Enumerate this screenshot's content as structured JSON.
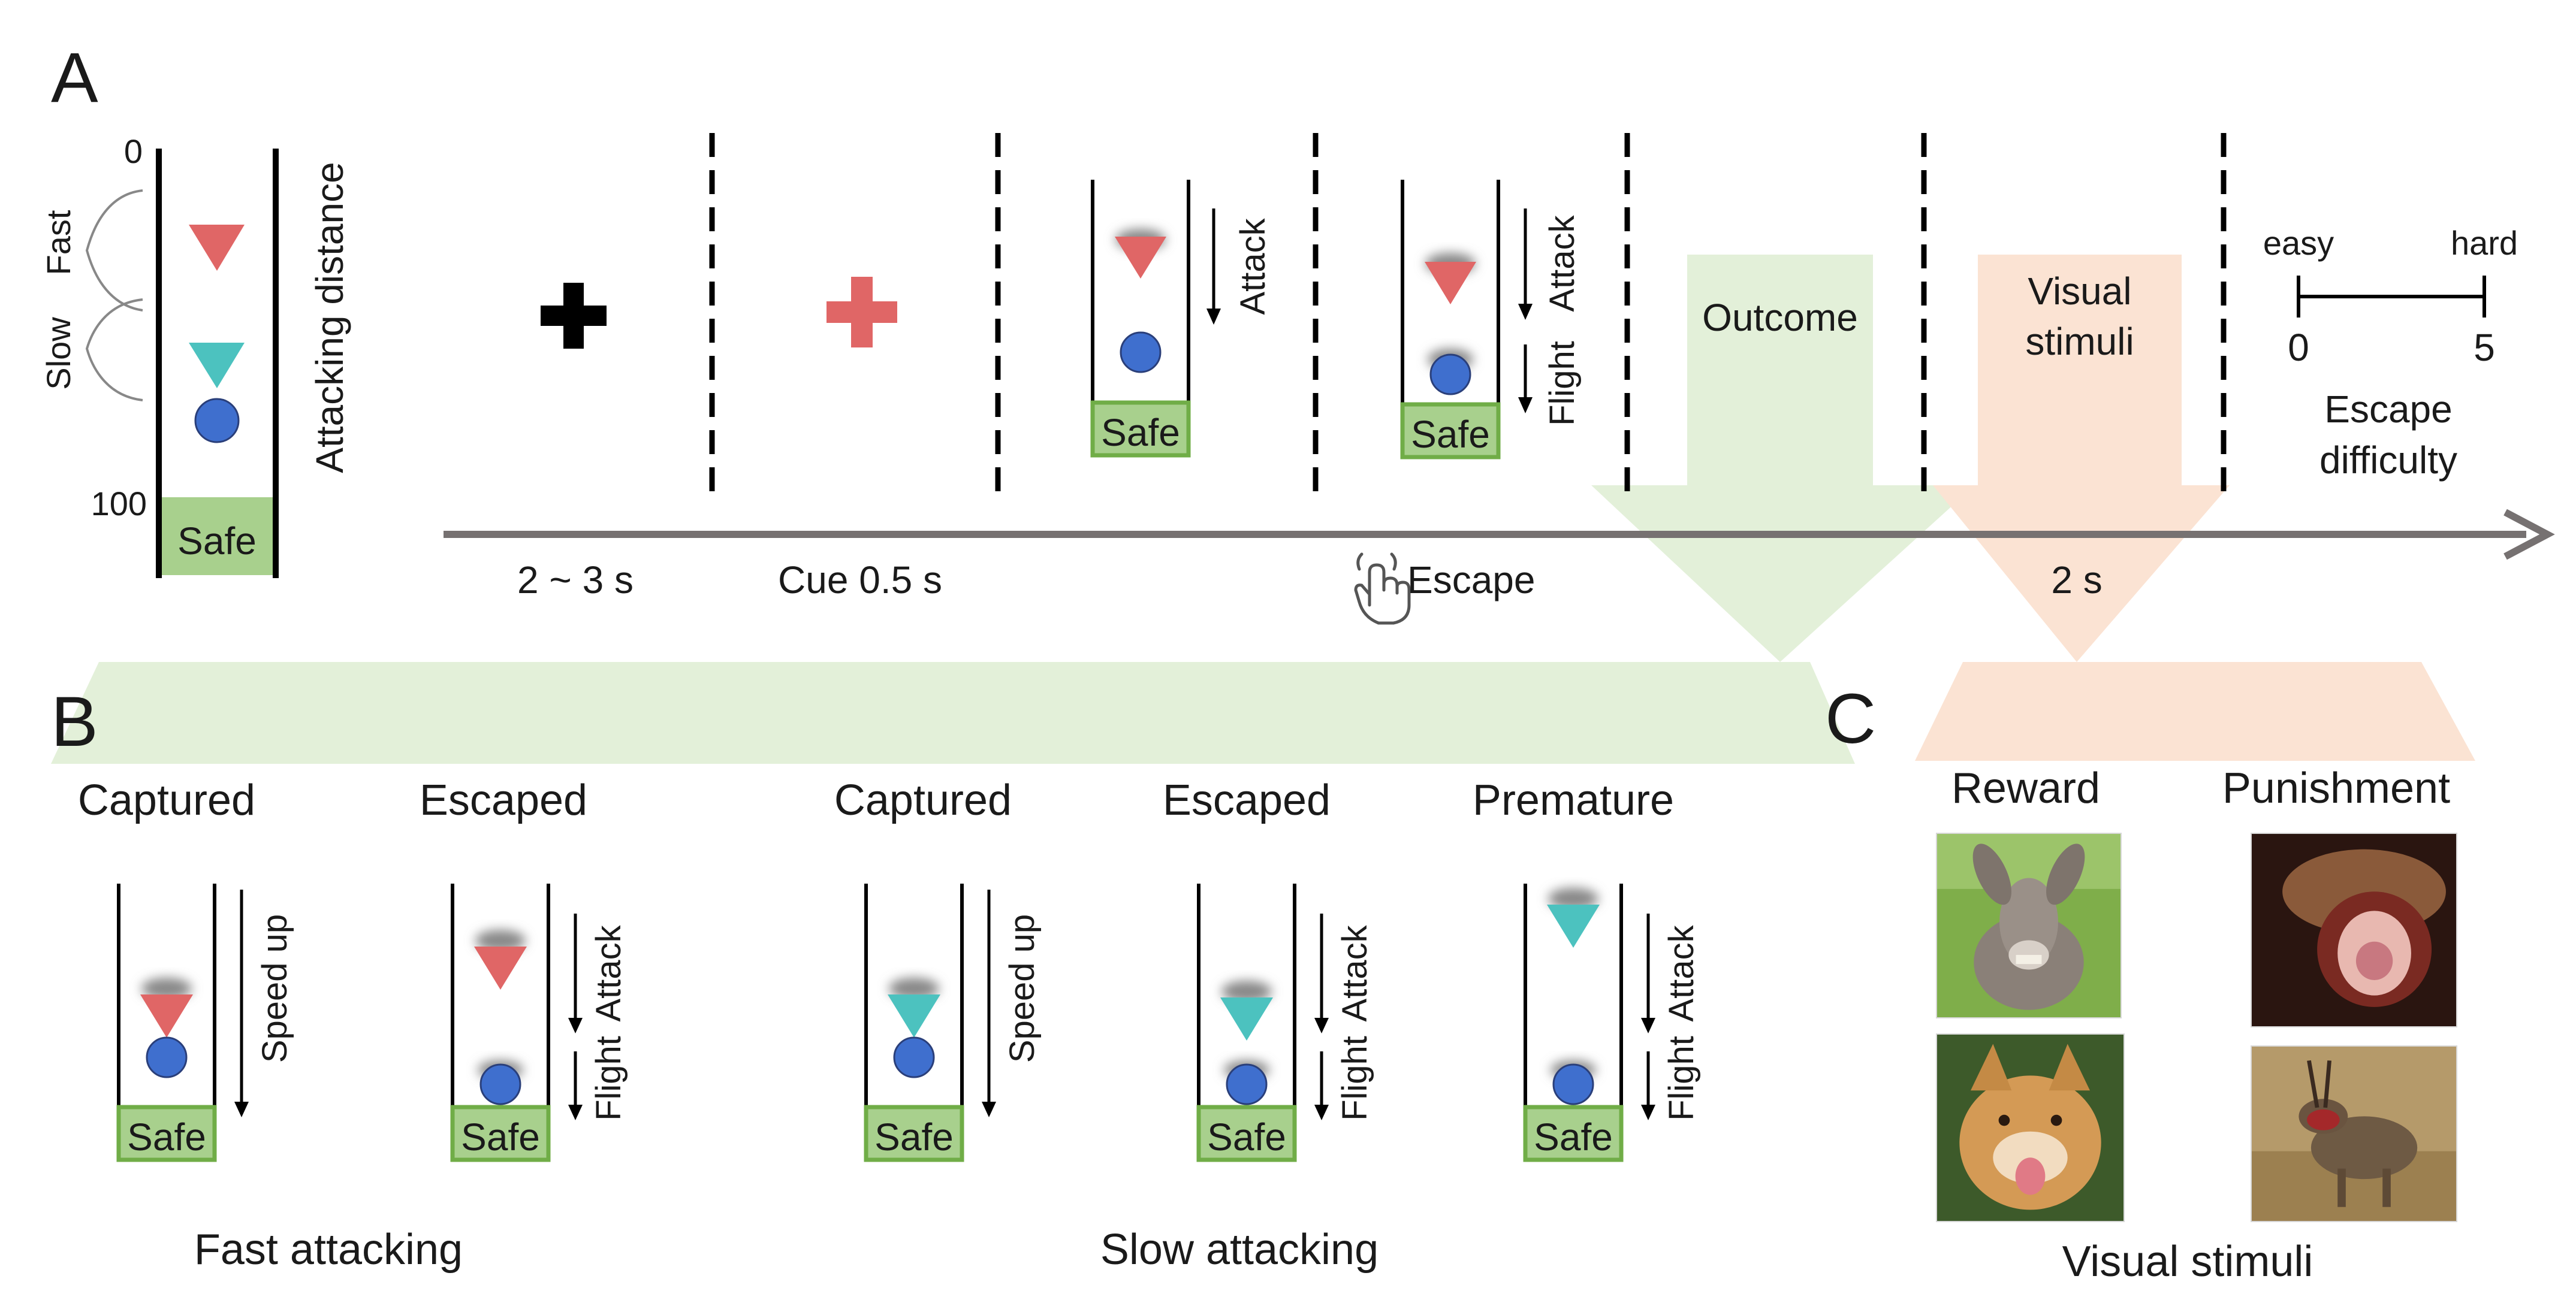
{
  "panels": {
    "a": "A",
    "b": "B",
    "c": "C"
  },
  "panel_a": {
    "axis_top": "0",
    "axis_bottom": "100",
    "speed_fast": "Fast",
    "speed_slow": "Slow",
    "axis_title": "Attacking distance",
    "safe": "Safe",
    "attack": "Attack",
    "flight": "Flight",
    "outcome": "Outcome",
    "visual_line1": "Visual",
    "visual_line2": "stimuli",
    "scale_easy": "easy",
    "scale_hard": "hard",
    "scale_min": "0",
    "scale_max": "5",
    "scale_title_line1": "Escape",
    "scale_title_line2": "difficulty",
    "time_iti": "2 ~ 3 s",
    "time_cue": "Cue 0.5 s",
    "time_escape": "Escape",
    "time_stimuli": "2 s"
  },
  "panel_b": {
    "columns": [
      {
        "title": "Captured",
        "side": "Speed up",
        "arrows": "single",
        "predator": "red",
        "pred_level": "low"
      },
      {
        "title": "Escaped",
        "side_top": "Attack",
        "side_bottom": "Flight",
        "arrows": "double",
        "predator": "red",
        "pred_level": "high"
      },
      {
        "title": "Captured",
        "side": "Speed up",
        "arrows": "single",
        "predator": "teal",
        "pred_level": "low"
      },
      {
        "title": "Escaped",
        "side_top": "Attack",
        "side_bottom": "Flight",
        "arrows": "double",
        "predator": "teal",
        "pred_level": "mid"
      },
      {
        "title": "Premature",
        "side_top": "Attack",
        "side_bottom": "Flight",
        "arrows": "double",
        "predator": "teal",
        "pred_level": "top"
      }
    ],
    "safe": "Safe",
    "group_fast": "Fast attacking",
    "group_slow": "Slow attacking"
  },
  "panel_c": {
    "reward": "Reward",
    "punishment": "Punishment",
    "caption": "Visual stimuli"
  },
  "colors": {
    "predator_fast": "#e06666",
    "predator_slow": "#4cc2bf",
    "prey": "#3f6fce",
    "safe_fill": "#a8d08d",
    "safe_border": "#70ad47",
    "outcome_arrow": "#e3f0d9",
    "stimuli_arrow": "#fbe3d3",
    "timeline": "#767171"
  }
}
